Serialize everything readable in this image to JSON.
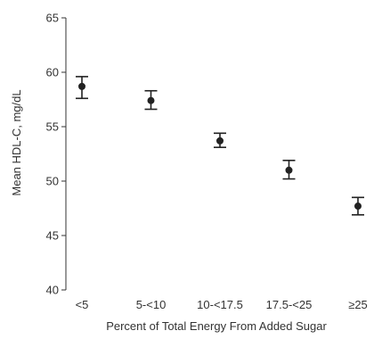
{
  "colors": {
    "background": "#ffffff",
    "axis": "#333333",
    "text": "#333333",
    "marker": "#222222"
  },
  "chart_data": {
    "type": "scatter",
    "title": "",
    "xlabel": "Percent of Total Energy From Added Sugar",
    "ylabel": "Mean HDL-C, mg/dL",
    "categories": [
      "<5",
      "5-<10",
      "10-<17.5",
      "17.5-<25",
      "≥25"
    ],
    "series": [
      {
        "values": [
          58.7,
          57.4,
          53.7,
          51.0,
          47.7
        ],
        "error_low": [
          57.6,
          56.6,
          53.1,
          50.2,
          46.9
        ],
        "error_high": [
          59.6,
          58.3,
          54.4,
          51.9,
          48.5
        ]
      }
    ],
    "ylim": [
      40,
      65
    ],
    "yticks": [
      40,
      45,
      50,
      55,
      60,
      65
    ],
    "grid": false,
    "legend": "none"
  }
}
